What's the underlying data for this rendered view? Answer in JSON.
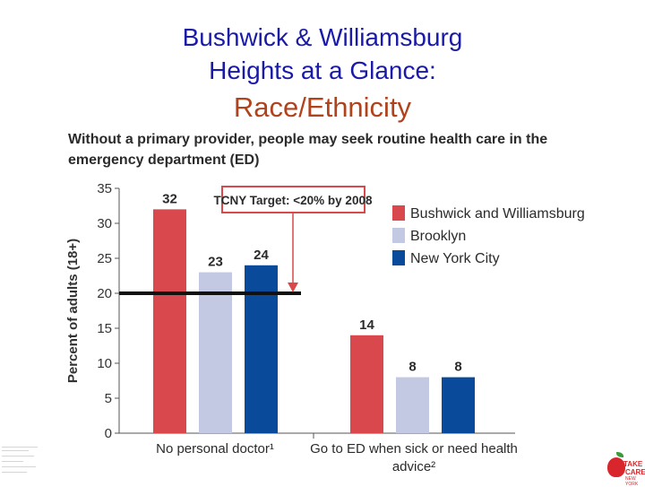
{
  "slide": {
    "title_line1": "Bushwick & Williamsburg",
    "title_line2": "Heights at a Glance:",
    "subtitle": "Race/Ethnicity",
    "logo_text_top": "TAKE",
    "logo_text_mid": "CARE",
    "logo_text_bottom": "NEW YORK"
  },
  "chart_data": {
    "type": "bar",
    "title": "Without a primary provider, people may seek routine health care in the emergency department (ED)",
    "ylabel": "Percent of adults (18+)",
    "ylim": [
      0,
      35
    ],
    "yticks": [
      0,
      5,
      10,
      15,
      20,
      25,
      30,
      35
    ],
    "categories": [
      "No personal doctor¹",
      "Go to ED when sick or need health advice²"
    ],
    "series": [
      {
        "name": "Bushwick and Williamsburg",
        "values": [
          32,
          14
        ],
        "color": "#d9484c"
      },
      {
        "name": "Brooklyn",
        "values": [
          23,
          8
        ],
        "color": "#c3c9e3"
      },
      {
        "name": "New York City",
        "values": [
          24,
          8
        ],
        "color": "#0a4a9a"
      }
    ],
    "target_line": {
      "value": 20,
      "label": "TCNY Target: <20% by 2008"
    },
    "legend_position": "right"
  }
}
